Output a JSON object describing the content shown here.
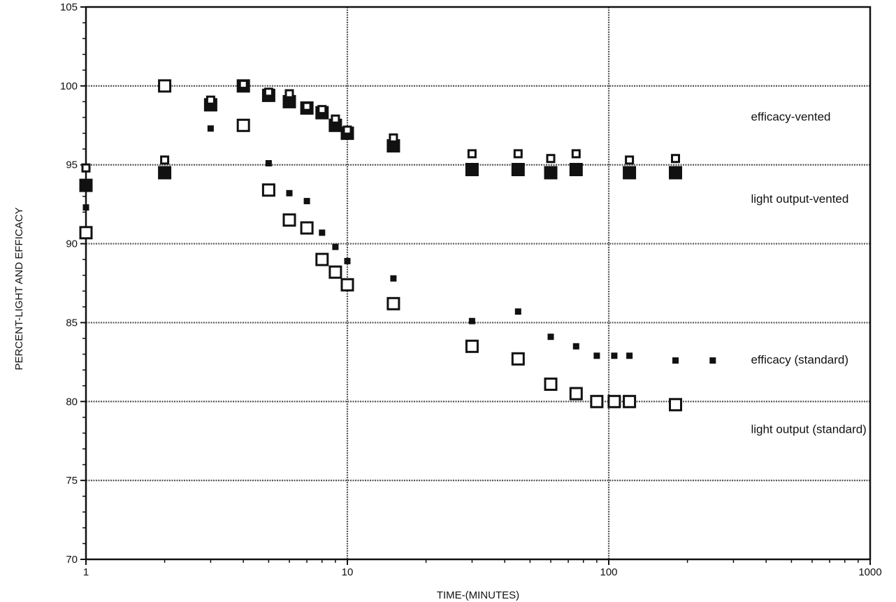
{
  "chart_data": {
    "type": "scatter",
    "x_scale": "log",
    "xlim": [
      1,
      1000
    ],
    "ylim": [
      70,
      105
    ],
    "xlabel": "TIME-(MINUTES)",
    "ylabel": "PERCENT-LIGHT AND EFFICACY",
    "x_ticks": [
      "1",
      "10",
      "100",
      "1000"
    ],
    "y_ticks": [
      "70",
      "75",
      "80",
      "85",
      "90",
      "95",
      "100",
      "105"
    ],
    "grid": "major gridlines at each labeled tick",
    "series": [
      {
        "name": "efficacy-vented",
        "marker": "small hollow square",
        "points": [
          [
            1,
            94.8
          ],
          [
            2,
            95.3
          ],
          [
            3,
            99.1
          ],
          [
            4,
            100.1
          ],
          [
            5,
            99.6
          ],
          [
            6,
            99.5
          ],
          [
            7,
            98.7
          ],
          [
            8,
            98.5
          ],
          [
            9,
            97.9
          ],
          [
            10,
            97.2
          ],
          [
            15,
            96.7
          ],
          [
            30,
            95.7
          ],
          [
            45,
            95.7
          ],
          [
            60,
            95.4
          ],
          [
            75,
            95.7
          ],
          [
            120,
            95.3
          ],
          [
            180,
            95.4
          ]
        ]
      },
      {
        "name": "light output-vented",
        "marker": "large filled square",
        "points": [
          [
            1,
            93.7
          ],
          [
            2,
            94.5
          ],
          [
            3,
            98.8
          ],
          [
            4,
            100.0
          ],
          [
            5,
            99.4
          ],
          [
            6,
            99.0
          ],
          [
            7,
            98.6
          ],
          [
            8,
            98.3
          ],
          [
            9,
            97.5
          ],
          [
            10,
            97.0
          ],
          [
            15,
            96.2
          ],
          [
            30,
            94.7
          ],
          [
            45,
            94.7
          ],
          [
            60,
            94.5
          ],
          [
            75,
            94.7
          ],
          [
            120,
            94.5
          ],
          [
            180,
            94.5
          ]
        ]
      },
      {
        "name": "efficacy (standard)",
        "marker": "small filled square",
        "points": [
          [
            1,
            92.3
          ],
          [
            3,
            97.3
          ],
          [
            5,
            95.1
          ],
          [
            6,
            93.2
          ],
          [
            7,
            92.7
          ],
          [
            8,
            90.7
          ],
          [
            9,
            89.8
          ],
          [
            10,
            88.9
          ],
          [
            15,
            87.8
          ],
          [
            30,
            85.1
          ],
          [
            45,
            85.7
          ],
          [
            60,
            84.1
          ],
          [
            75,
            83.5
          ],
          [
            90,
            82.9
          ],
          [
            105,
            82.9
          ],
          [
            120,
            82.9
          ],
          [
            180,
            82.6
          ]
        ]
      },
      {
        "name": "light output (standard)",
        "marker": "large hollow square",
        "points": [
          [
            1,
            90.7
          ],
          [
            2,
            100.0
          ],
          [
            4,
            97.5
          ],
          [
            5,
            93.4
          ],
          [
            6,
            91.5
          ],
          [
            7,
            91.0
          ],
          [
            8,
            89.0
          ],
          [
            9,
            88.2
          ],
          [
            10,
            87.4
          ],
          [
            15,
            86.2
          ],
          [
            30,
            83.5
          ],
          [
            45,
            82.7
          ],
          [
            60,
            81.1
          ],
          [
            75,
            80.5
          ],
          [
            90,
            80.0
          ],
          [
            105,
            80.0
          ],
          [
            120,
            80.0
          ],
          [
            180,
            79.8
          ]
        ]
      }
    ],
    "annotations": [
      {
        "text": "efficacy-vented",
        "x": 350,
        "y": 97.8
      },
      {
        "text": "light output-vented",
        "x": 350,
        "y": 92.6
      },
      {
        "text": "efficacy (standard)",
        "x": 350,
        "y": 82.4
      },
      {
        "text": "light output (standard)",
        "x": 350,
        "y": 78.0
      }
    ],
    "legend_marker": {
      "series": "efficacy (standard)",
      "x": 250,
      "y": 82.6
    }
  }
}
